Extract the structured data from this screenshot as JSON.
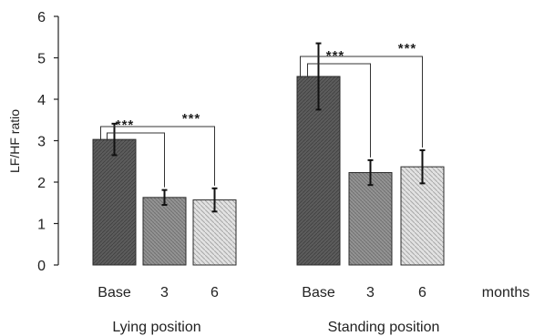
{
  "chart_data": {
    "type": "bar",
    "ylabel": "LF/HF ratio",
    "ylim": [
      0,
      6
    ],
    "yticks": [
      0,
      1,
      2,
      3,
      4,
      5,
      6
    ],
    "x_unit": "months",
    "grid": false,
    "groups": [
      {
        "name": "Lying position",
        "categories": [
          "Base",
          "3",
          "6"
        ],
        "values": [
          3.03,
          1.63,
          1.57
        ],
        "errors": [
          0.38,
          0.18,
          0.28
        ],
        "significance": [
          {
            "from": 0,
            "to": 1,
            "label": "***"
          },
          {
            "from": 0,
            "to": 2,
            "label": "***"
          }
        ]
      },
      {
        "name": "Standing position",
        "categories": [
          "Base",
          "3",
          "6"
        ],
        "values": [
          4.55,
          2.23,
          2.37
        ],
        "errors": [
          0.8,
          0.3,
          0.4
        ],
        "significance": [
          {
            "from": 0,
            "to": 1,
            "label": "***"
          },
          {
            "from": 0,
            "to": 2,
            "label": "***"
          }
        ]
      }
    ],
    "bar_colors": [
      "#575757",
      "#8c8c8c",
      "#cfcfcf"
    ]
  }
}
